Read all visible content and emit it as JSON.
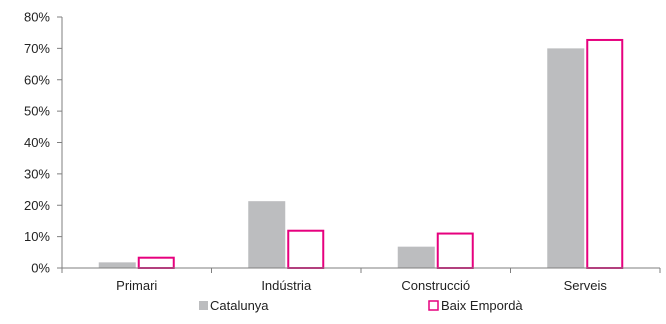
{
  "chart_data": {
    "type": "bar",
    "categories": [
      "Primari",
      "Indústria",
      "Construcció",
      "Serveis"
    ],
    "series": [
      {
        "name": "Catalunya",
        "values": [
          0.018,
          0.213,
          0.068,
          0.7
        ],
        "color": "#bcbdbf",
        "style": "filled"
      },
      {
        "name": "Baix Empordà",
        "values": [
          0.036,
          0.122,
          0.113,
          0.73
        ],
        "color": "#e6007e",
        "style": "outline"
      }
    ],
    "y_ticks": [
      "0%",
      "10%",
      "20%",
      "30%",
      "40%",
      "50%",
      "60%",
      "70%",
      "80%"
    ],
    "ylim": [
      0,
      0.8
    ],
    "title": "",
    "xlabel": "",
    "ylabel": "",
    "grid": false,
    "legend_position": "bottom"
  }
}
